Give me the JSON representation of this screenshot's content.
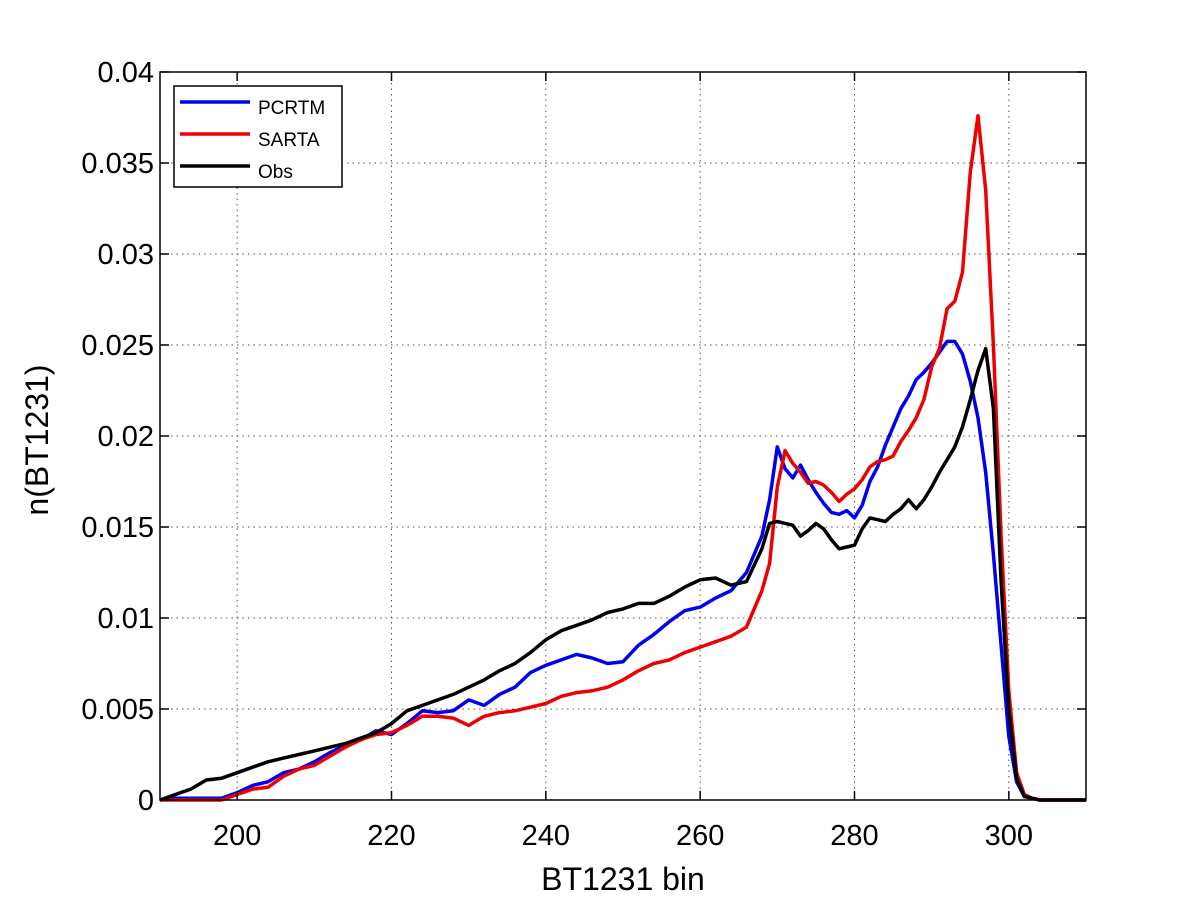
{
  "chart_data": {
    "type": "line",
    "title": "",
    "xlabel": "BT1231 bin",
    "ylabel": "n(BT1231)",
    "xlim": [
      190,
      310
    ],
    "ylim": [
      0,
      0.04
    ],
    "xticks": [
      200,
      220,
      240,
      260,
      280,
      300
    ],
    "xtick_labels": [
      "200",
      "220",
      "240",
      "260",
      "280",
      "300"
    ],
    "yticks": [
      0,
      0.005,
      0.01,
      0.015,
      0.02,
      0.025,
      0.03,
      0.035,
      0.04
    ],
    "ytick_labels": [
      "0",
      "0.005",
      "0.01",
      "0.015",
      "0.02",
      "0.025",
      "0.03",
      "0.035",
      "0.04"
    ],
    "grid": true,
    "legend_position": "top-left",
    "series": [
      {
        "name": "PCRTM",
        "color": "#0000ee",
        "x": [
          190,
          192,
          194,
          196,
          198,
          200,
          202,
          204,
          206,
          208,
          210,
          212,
          214,
          216,
          218,
          220,
          222,
          224,
          226,
          228,
          230,
          232,
          234,
          236,
          238,
          240,
          242,
          244,
          246,
          248,
          250,
          252,
          254,
          256,
          258,
          260,
          262,
          264,
          266,
          268,
          269,
          270,
          271,
          272,
          273,
          274,
          275,
          276,
          277,
          278,
          279,
          280,
          281,
          282,
          283,
          284,
          285,
          286,
          287,
          288,
          289,
          290,
          291,
          292,
          293,
          294,
          295,
          296,
          297,
          298,
          299,
          300,
          301,
          302,
          303,
          304,
          306,
          308,
          310
        ],
        "y": [
          0,
          0.0001,
          0.0001,
          0.0001,
          0.0001,
          0.0004,
          0.0008,
          0.001,
          0.0015,
          0.0017,
          0.0021,
          0.0026,
          0.003,
          0.0033,
          0.0038,
          0.0036,
          0.0042,
          0.0049,
          0.0048,
          0.0049,
          0.0055,
          0.0052,
          0.0058,
          0.0062,
          0.007,
          0.0074,
          0.0077,
          0.008,
          0.0078,
          0.0075,
          0.0076,
          0.0085,
          0.0091,
          0.0098,
          0.0104,
          0.0106,
          0.0111,
          0.0115,
          0.0125,
          0.0145,
          0.0165,
          0.0194,
          0.0182,
          0.0177,
          0.0184,
          0.0176,
          0.0169,
          0.0163,
          0.0158,
          0.0157,
          0.0159,
          0.0155,
          0.0162,
          0.0175,
          0.0183,
          0.0195,
          0.0205,
          0.0215,
          0.0222,
          0.0231,
          0.0235,
          0.024,
          0.0246,
          0.0252,
          0.0252,
          0.0245,
          0.023,
          0.021,
          0.018,
          0.0135,
          0.0085,
          0.0035,
          0.001,
          0.0002,
          0.0001,
          0,
          0,
          0,
          0
        ]
      },
      {
        "name": "SARTA",
        "color": "#ee0000",
        "x": [
          190,
          192,
          194,
          196,
          198,
          200,
          202,
          204,
          206,
          208,
          210,
          212,
          214,
          216,
          218,
          220,
          222,
          224,
          226,
          228,
          230,
          232,
          234,
          236,
          238,
          240,
          242,
          244,
          246,
          248,
          250,
          252,
          254,
          256,
          258,
          260,
          262,
          264,
          266,
          268,
          269,
          270,
          271,
          272,
          273,
          274,
          275,
          276,
          277,
          278,
          279,
          280,
          281,
          282,
          283,
          284,
          285,
          286,
          287,
          288,
          289,
          290,
          291,
          292,
          293,
          294,
          295,
          296,
          297,
          298,
          299,
          300,
          301,
          302,
          303,
          304,
          306,
          308,
          310
        ],
        "y": [
          0,
          0,
          0,
          0,
          0,
          0.0003,
          0.0006,
          0.0007,
          0.0013,
          0.0017,
          0.0019,
          0.0024,
          0.0029,
          0.0033,
          0.0036,
          0.0037,
          0.0041,
          0.0046,
          0.0046,
          0.0045,
          0.0041,
          0.0046,
          0.0048,
          0.0049,
          0.0051,
          0.0053,
          0.0057,
          0.0059,
          0.006,
          0.0062,
          0.0066,
          0.0071,
          0.0075,
          0.0077,
          0.0081,
          0.0084,
          0.0087,
          0.009,
          0.0095,
          0.0115,
          0.013,
          0.0172,
          0.0192,
          0.0185,
          0.018,
          0.0174,
          0.0175,
          0.0173,
          0.0169,
          0.0164,
          0.0168,
          0.0171,
          0.0176,
          0.0183,
          0.0186,
          0.0187,
          0.0189,
          0.0197,
          0.0203,
          0.021,
          0.022,
          0.0238,
          0.0248,
          0.027,
          0.0274,
          0.029,
          0.0345,
          0.0376,
          0.0335,
          0.025,
          0.0145,
          0.006,
          0.0015,
          0.0003,
          0.0001,
          0,
          0,
          0,
          0
        ]
      },
      {
        "name": "Obs",
        "color": "#000000",
        "x": [
          190,
          192,
          194,
          196,
          198,
          200,
          202,
          204,
          206,
          208,
          210,
          212,
          214,
          216,
          218,
          220,
          222,
          224,
          226,
          228,
          230,
          232,
          234,
          236,
          238,
          240,
          242,
          244,
          246,
          248,
          250,
          252,
          254,
          256,
          258,
          260,
          262,
          264,
          266,
          268,
          269,
          270,
          271,
          272,
          273,
          274,
          275,
          276,
          277,
          278,
          279,
          280,
          281,
          282,
          283,
          284,
          285,
          286,
          287,
          288,
          289,
          290,
          291,
          292,
          293,
          294,
          295,
          296,
          297,
          298,
          299,
          300,
          301,
          302,
          303,
          304,
          306,
          308,
          310
        ],
        "y": [
          0,
          0.0003,
          0.0006,
          0.0011,
          0.0012,
          0.0015,
          0.0018,
          0.0021,
          0.0023,
          0.0025,
          0.0027,
          0.0029,
          0.0031,
          0.0034,
          0.0037,
          0.0042,
          0.0049,
          0.0052,
          0.0055,
          0.0058,
          0.0062,
          0.0066,
          0.0071,
          0.0075,
          0.0081,
          0.0088,
          0.0093,
          0.0096,
          0.0099,
          0.0103,
          0.0105,
          0.0108,
          0.0108,
          0.0112,
          0.0117,
          0.0121,
          0.0122,
          0.0118,
          0.012,
          0.0138,
          0.0152,
          0.0153,
          0.0152,
          0.0151,
          0.0145,
          0.0148,
          0.0152,
          0.0149,
          0.0143,
          0.0138,
          0.0139,
          0.014,
          0.0149,
          0.0155,
          0.0154,
          0.0153,
          0.0157,
          0.016,
          0.0165,
          0.016,
          0.0165,
          0.0172,
          0.018,
          0.0187,
          0.0194,
          0.0205,
          0.022,
          0.0236,
          0.0248,
          0.0215,
          0.012,
          0.005,
          0.0012,
          0.0002,
          0.0001,
          0,
          0,
          0,
          0
        ]
      }
    ]
  }
}
